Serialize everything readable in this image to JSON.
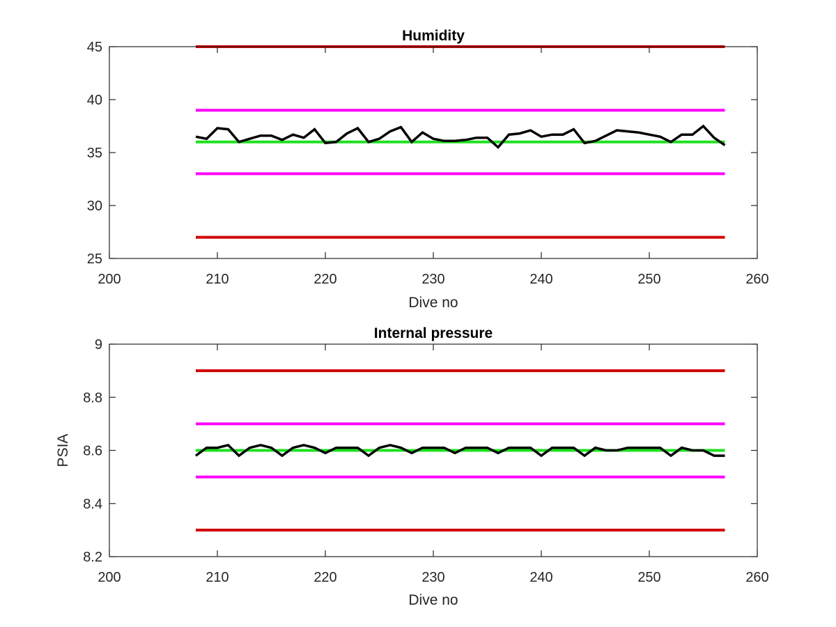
{
  "chart_data": [
    {
      "type": "line",
      "title": "Humidity",
      "xlabel": "Dive no",
      "ylabel": "",
      "xlim": [
        200,
        260
      ],
      "ylim": [
        25,
        45
      ],
      "xticks": [
        "200",
        "210",
        "220",
        "230",
        "240",
        "250",
        "260"
      ],
      "yticks": [
        "25",
        "30",
        "35",
        "40",
        "45"
      ],
      "grid": false,
      "legend": "none",
      "series": [
        {
          "color": "#d00000",
          "width": 4,
          "x": [
            208,
            257
          ],
          "y": [
            45,
            45
          ]
        },
        {
          "color": "#d00000",
          "width": 4,
          "x": [
            208,
            257
          ],
          "y": [
            27,
            27
          ]
        },
        {
          "color": "#ff00ff",
          "width": 4,
          "x": [
            208,
            257
          ],
          "y": [
            39,
            39
          ]
        },
        {
          "color": "#ff00ff",
          "width": 4,
          "x": [
            208,
            257
          ],
          "y": [
            33,
            33
          ]
        },
        {
          "color": "#20e020",
          "width": 4,
          "x": [
            208,
            257
          ],
          "y": [
            36,
            36
          ]
        },
        {
          "color": "#000000",
          "width": 3.5,
          "x": [
            208,
            209,
            210,
            211,
            212,
            213,
            214,
            215,
            216,
            217,
            218,
            219,
            220,
            221,
            222,
            223,
            224,
            225,
            226,
            227,
            228,
            229,
            230,
            231,
            232,
            233,
            234,
            235,
            236,
            237,
            238,
            239,
            240,
            241,
            242,
            243,
            244,
            245,
            246,
            247,
            248,
            249,
            250,
            251,
            252,
            253,
            254,
            255,
            256,
            257
          ],
          "y": [
            36.5,
            36.3,
            37.3,
            37.2,
            36.0,
            36.3,
            36.6,
            36.6,
            36.2,
            36.7,
            36.4,
            37.2,
            35.9,
            36.0,
            36.8,
            37.3,
            36.0,
            36.3,
            37.0,
            37.4,
            36.0,
            36.9,
            36.3,
            36.1,
            36.1,
            36.2,
            36.4,
            36.4,
            35.5,
            36.7,
            36.8,
            37.1,
            36.5,
            36.7,
            36.7,
            37.2,
            35.9,
            36.1,
            36.6,
            37.1,
            37.0,
            36.9,
            36.7,
            36.5,
            36.0,
            36.7,
            36.7,
            37.5,
            36.4,
            35.7
          ]
        }
      ]
    },
    {
      "type": "line",
      "title": "Internal pressure",
      "xlabel": "Dive no",
      "ylabel": "PSIA",
      "xlim": [
        200,
        260
      ],
      "ylim": [
        8.2,
        9.0
      ],
      "xticks": [
        "200",
        "210",
        "220",
        "230",
        "240",
        "250",
        "260"
      ],
      "yticks": [
        "8.2",
        "8.4",
        "8.6",
        "8.8",
        "9"
      ],
      "grid": false,
      "legend": "none",
      "series": [
        {
          "color": "#d00000",
          "width": 4,
          "x": [
            208,
            257
          ],
          "y": [
            8.9,
            8.9
          ]
        },
        {
          "color": "#d00000",
          "width": 4,
          "x": [
            208,
            257
          ],
          "y": [
            8.3,
            8.3
          ]
        },
        {
          "color": "#ff00ff",
          "width": 4,
          "x": [
            208,
            257
          ],
          "y": [
            8.7,
            8.7
          ]
        },
        {
          "color": "#ff00ff",
          "width": 4,
          "x": [
            208,
            257
          ],
          "y": [
            8.5,
            8.5
          ]
        },
        {
          "color": "#20e020",
          "width": 4,
          "x": [
            208,
            257
          ],
          "y": [
            8.6,
            8.6
          ]
        },
        {
          "color": "#000000",
          "width": 3.5,
          "x": [
            208,
            209,
            210,
            211,
            212,
            213,
            214,
            215,
            216,
            217,
            218,
            219,
            220,
            221,
            222,
            223,
            224,
            225,
            226,
            227,
            228,
            229,
            230,
            231,
            232,
            233,
            234,
            235,
            236,
            237,
            238,
            239,
            240,
            241,
            242,
            243,
            244,
            245,
            246,
            247,
            248,
            249,
            250,
            251,
            252,
            253,
            254,
            255,
            256,
            257
          ],
          "y": [
            8.58,
            8.61,
            8.61,
            8.62,
            8.58,
            8.61,
            8.62,
            8.61,
            8.58,
            8.61,
            8.62,
            8.61,
            8.59,
            8.61,
            8.61,
            8.61,
            8.58,
            8.61,
            8.62,
            8.61,
            8.59,
            8.61,
            8.61,
            8.61,
            8.59,
            8.61,
            8.61,
            8.61,
            8.59,
            8.61,
            8.61,
            8.61,
            8.58,
            8.61,
            8.61,
            8.61,
            8.58,
            8.61,
            8.6,
            8.6,
            8.61,
            8.61,
            8.61,
            8.61,
            8.58,
            8.61,
            8.6,
            8.6,
            8.58,
            8.58
          ]
        }
      ]
    }
  ]
}
